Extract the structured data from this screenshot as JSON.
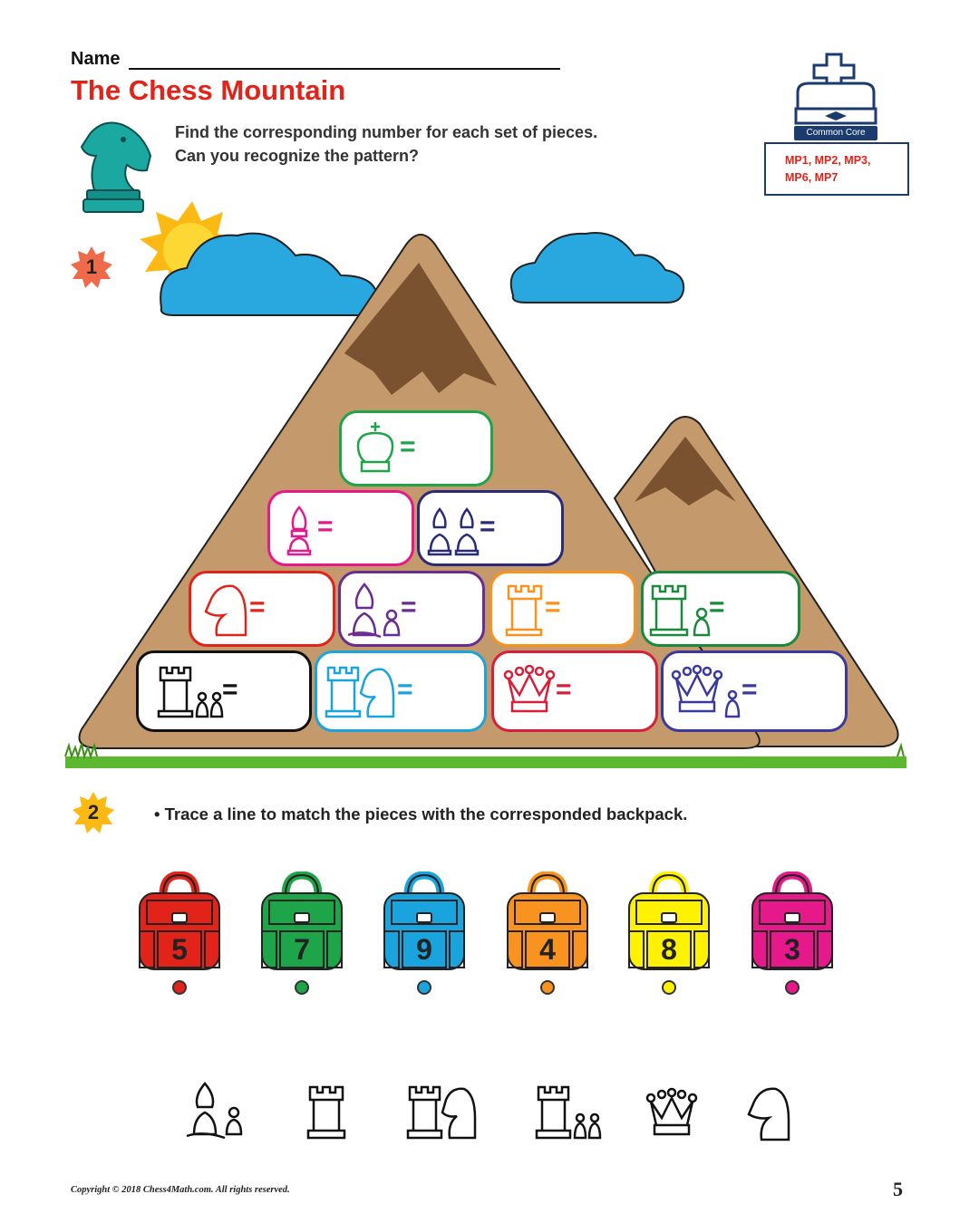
{
  "header": {
    "name_label": "Name",
    "title": "The Chess Mountain",
    "instructions": [
      "Find the corresponding number for each set of pieces.",
      "Can you recognize the pattern?"
    ]
  },
  "standards": {
    "label": "Common Core",
    "lines": [
      "MP1, MP2, MP3,",
      "MP6, MP7"
    ]
  },
  "section1": {
    "badge": "1"
  },
  "mountain_stones": [
    {
      "pieces": "king",
      "equals": "=",
      "color": "#1ea54a"
    },
    {
      "pieces": "bishop",
      "equals": "=",
      "color": "#e6198b"
    },
    {
      "pieces": "two bishops",
      "equals": "=",
      "color": "#2a2a7a"
    },
    {
      "pieces": "knight",
      "equals": "=",
      "color": "#e2231a"
    },
    {
      "pieces": "bishop and pawn",
      "equals": "=",
      "color": "#6a2c91"
    },
    {
      "pieces": "rook",
      "equals": "=",
      "color": "#f7931e"
    },
    {
      "pieces": "rook and pawn",
      "equals": "=",
      "color": "#1b8a3c"
    },
    {
      "pieces": "rook and two pawns",
      "equals": "=",
      "color": "#111111"
    },
    {
      "pieces": "rook and knight",
      "equals": "=",
      "color": "#1aa4dd"
    },
    {
      "pieces": "queen",
      "equals": "=",
      "color": "#d6203a"
    },
    {
      "pieces": "queen and pawn",
      "equals": "=",
      "color": "#3a3a9e"
    }
  ],
  "section2": {
    "badge": "2",
    "instruction": "• Trace a line to match the pieces with the corresponded backpack."
  },
  "backpacks": [
    {
      "number": "5",
      "color": "#e2231a"
    },
    {
      "number": "7",
      "color": "#1ea54a"
    },
    {
      "number": "9",
      "color": "#1aa4dd"
    },
    {
      "number": "4",
      "color": "#f7931e"
    },
    {
      "number": "8",
      "color": "#fff200"
    },
    {
      "number": "3",
      "color": "#e6198b"
    }
  ],
  "bottom_pieces": [
    "bishop and pawn",
    "rook",
    "rook and knight",
    "rook and two pawns",
    "queen",
    "knight"
  ],
  "footer": {
    "copyright": "Copyright © 2018 Chess4Math.com. All rights reserved.",
    "page_number": "5"
  }
}
